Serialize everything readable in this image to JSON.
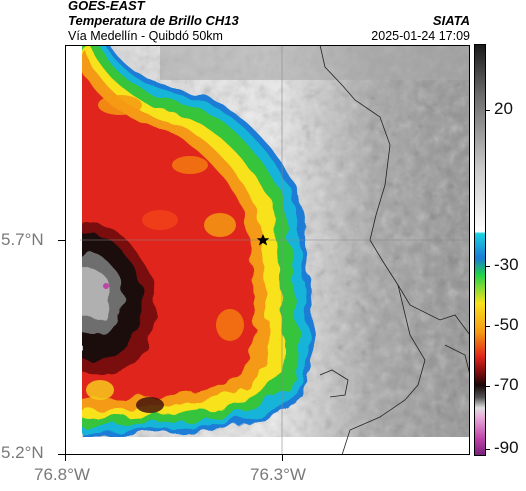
{
  "header": {
    "satellite": "GOES-EAST",
    "product": "Temperatura de Brillo CH13",
    "organization": "SIATA",
    "region": "Vía Medellín - Quibdó 50km",
    "timestamp": "2025-01-24 17:09"
  },
  "axes": {
    "y_labels": [
      "5.7°N",
      "5.2°N"
    ],
    "x_labels": [
      "76.8°W",
      "76.3°W"
    ]
  },
  "colorbar": {
    "labels": [
      "20",
      "-30",
      "-50",
      "-70",
      "-90"
    ],
    "units_hint": "brightness temperature"
  },
  "marker": {
    "icon": "star-icon",
    "color": "#000000"
  },
  "colors": {
    "cloud_top_red": "#e0251a",
    "cloud_yellow": "#f7e21c",
    "cloud_green": "#35c43b",
    "cloud_edge_blue": "#1b7bd6",
    "coldest_black": "#1a0808",
    "coldest_gray": "#8a8a8a",
    "magenta": "#c043a8",
    "ground_gray": "#9d9d9d"
  }
}
